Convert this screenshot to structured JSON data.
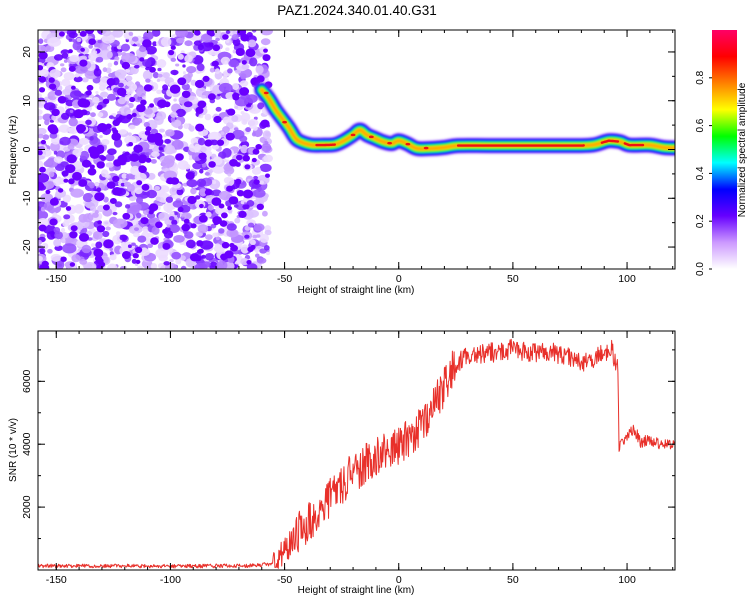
{
  "title": "PAZ1.2024.340.01.40.G31",
  "chart_data": [
    {
      "type": "heatmap",
      "xlabel": "Height of straight line (km)",
      "ylabel": "Frequency (Hz)",
      "xlim": [
        -158,
        121
      ],
      "ylim": [
        -24.5,
        24.5
      ],
      "x_ticks": [
        "-150",
        "-100",
        "-50",
        "0",
        "50",
        "100"
      ],
      "x_tick_values": [
        -150,
        -100,
        -50,
        0,
        50,
        100
      ],
      "y_ticks": [
        "20",
        "10",
        "0",
        "-10",
        "-20"
      ],
      "y_tick_values": [
        20,
        10,
        0,
        -10,
        -20
      ],
      "colorbar": {
        "label": "Normalized spectral amplitude",
        "range": [
          0,
          1
        ],
        "ticks": [
          "0.0",
          "0.2",
          "0.4",
          "0.6",
          "0.8"
        ],
        "tick_values": [
          0.0,
          0.2,
          0.4,
          0.6,
          0.8
        ],
        "colors": [
          "#ffffff",
          "#cc99ff",
          "#6600ff",
          "#0000ff",
          "#00ffff",
          "#00ff00",
          "#ffff00",
          "#ff8000",
          "#ff0000",
          "#ff0066"
        ]
      },
      "noise_region": {
        "x_range": [
          -158,
          -57
        ],
        "y_range": [
          -24.5,
          24.5
        ]
      },
      "ridge": [
        {
          "x": -60,
          "y": 12.2
        },
        {
          "x": -57,
          "y": 10.5
        },
        {
          "x": -54,
          "y": 8.2
        },
        {
          "x": -51,
          "y": 6.3
        },
        {
          "x": -48,
          "y": 4.4
        },
        {
          "x": -45,
          "y": 2.2
        },
        {
          "x": -42,
          "y": 1.4
        },
        {
          "x": -38,
          "y": 0.9
        },
        {
          "x": -33,
          "y": 0.9
        },
        {
          "x": -28,
          "y": 1.0
        },
        {
          "x": -24,
          "y": 1.8
        },
        {
          "x": -20,
          "y": 3.0
        },
        {
          "x": -17,
          "y": 4.0
        },
        {
          "x": -14,
          "y": 3.0
        },
        {
          "x": -11,
          "y": 2.4
        },
        {
          "x": -7,
          "y": 1.6
        },
        {
          "x": -3,
          "y": 1.2
        },
        {
          "x": 0,
          "y": 1.8
        },
        {
          "x": 4,
          "y": 1.1
        },
        {
          "x": 8,
          "y": 0.2
        },
        {
          "x": 14,
          "y": 0.2
        },
        {
          "x": 20,
          "y": 0.4
        },
        {
          "x": 26,
          "y": 0.8
        },
        {
          "x": 40,
          "y": 0.8
        },
        {
          "x": 60,
          "y": 0.8
        },
        {
          "x": 80,
          "y": 0.8
        },
        {
          "x": 86,
          "y": 1.0
        },
        {
          "x": 92,
          "y": 1.8
        },
        {
          "x": 97,
          "y": 1.6
        },
        {
          "x": 101,
          "y": 0.9
        },
        {
          "x": 110,
          "y": 0.9
        },
        {
          "x": 116,
          "y": 0.4
        },
        {
          "x": 121,
          "y": 0.3
        }
      ],
      "hot_segments": [
        [
          -36,
          -28
        ],
        [
          26,
          81
        ],
        [
          89,
          96
        ],
        [
          99,
          107
        ]
      ]
    },
    {
      "type": "line",
      "xlabel": "Height of straight line (km)",
      "ylabel": "SNR (10 * v/v)",
      "xlim": [
        -158,
        121
      ],
      "ylim": [
        0,
        7600
      ],
      "x_ticks": [
        "-150",
        "-100",
        "-50",
        "0",
        "50",
        "100"
      ],
      "x_tick_values": [
        -150,
        -100,
        -50,
        0,
        50,
        100
      ],
      "y_ticks": [
        "2000",
        "4000",
        "6000"
      ],
      "y_tick_values": [
        2000,
        4000,
        6000
      ],
      "series": [
        {
          "color": "#e8302a",
          "x": [
            -158,
            -140,
            -120,
            -100,
            -80,
            -65,
            -55,
            -50,
            -45,
            -40,
            -35,
            -30,
            -25,
            -20,
            -15,
            -10,
            -5,
            0,
            5,
            10,
            15,
            20,
            25,
            30,
            35,
            40,
            45,
            50,
            55,
            60,
            65,
            70,
            75,
            80,
            85,
            90,
            93,
            96,
            96.5,
            98,
            100,
            103,
            106,
            110,
            115,
            121
          ],
          "y": [
            130,
            130,
            130,
            120,
            130,
            140,
            200,
            600,
            1100,
            1500,
            1900,
            2300,
            2700,
            3100,
            3350,
            3600,
            3700,
            3950,
            4250,
            4600,
            5150,
            5800,
            6550,
            6800,
            6850,
            6900,
            6950,
            7050,
            6950,
            6900,
            6950,
            6850,
            6800,
            6600,
            6650,
            6950,
            7050,
            6400,
            3950,
            4000,
            4300,
            4500,
            4050,
            4150,
            4000,
            3950
          ]
        }
      ]
    }
  ]
}
